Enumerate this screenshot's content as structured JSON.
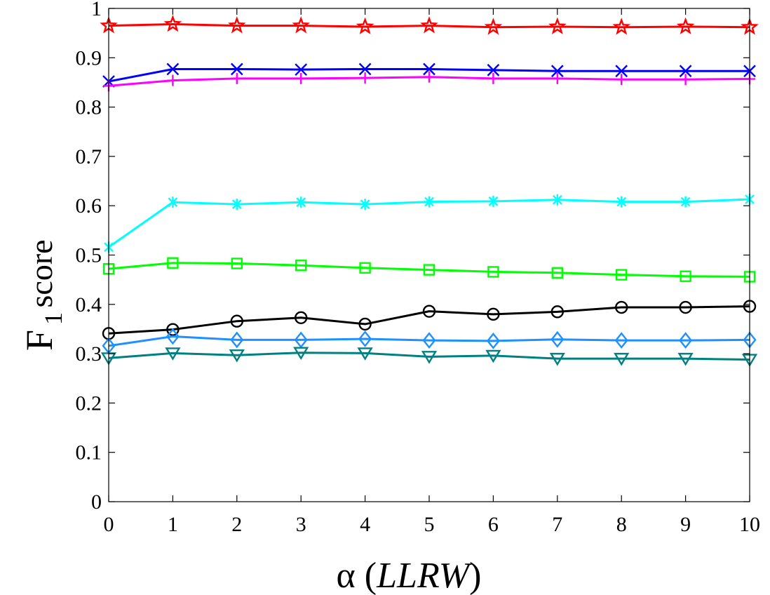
{
  "chart_data": {
    "type": "line",
    "title": "",
    "xlabel": {
      "greek": "α",
      "open": " (",
      "italic": "LLRW",
      "close": ")"
    },
    "ylabel": {
      "main": "F",
      "subscript": "1",
      "suffix": " score"
    },
    "x": [
      0,
      1,
      2,
      3,
      4,
      5,
      6,
      7,
      8,
      9,
      10
    ],
    "xlim": [
      0,
      10
    ],
    "ylim": [
      0,
      1
    ],
    "xticks": [
      "0",
      "1",
      "2",
      "3",
      "4",
      "5",
      "6",
      "7",
      "8",
      "9",
      "10"
    ],
    "yticks": [
      "0",
      "0.1",
      "0.2",
      "0.3",
      "0.4",
      "0.5",
      "0.6",
      "0.7",
      "0.8",
      "0.9",
      "1"
    ],
    "grid": false,
    "legend": "none",
    "series": [
      {
        "name": "red-star",
        "color": "#ff0000",
        "marker": "star",
        "values": [
          0.965,
          0.968,
          0.965,
          0.965,
          0.963,
          0.965,
          0.962,
          0.963,
          0.962,
          0.963,
          0.962
        ]
      },
      {
        "name": "blue-x",
        "color": "#0000ff",
        "marker": "x",
        "values": [
          0.852,
          0.877,
          0.877,
          0.876,
          0.877,
          0.877,
          0.875,
          0.873,
          0.873,
          0.873,
          0.873
        ]
      },
      {
        "name": "magenta-plus",
        "color": "#ff00ff",
        "marker": "plus",
        "values": [
          0.843,
          0.854,
          0.858,
          0.858,
          0.859,
          0.861,
          0.858,
          0.858,
          0.856,
          0.856,
          0.857
        ]
      },
      {
        "name": "cyan-asterisk",
        "color": "#00ffff",
        "marker": "asterisk",
        "values": [
          0.516,
          0.607,
          0.603,
          0.607,
          0.603,
          0.608,
          0.609,
          0.612,
          0.608,
          0.608,
          0.613
        ]
      },
      {
        "name": "green-square",
        "color": "#00ff00",
        "marker": "square",
        "values": [
          0.472,
          0.484,
          0.483,
          0.479,
          0.474,
          0.47,
          0.466,
          0.464,
          0.46,
          0.457,
          0.456
        ]
      },
      {
        "name": "black-circle",
        "color": "#000000",
        "marker": "circle",
        "values": [
          0.341,
          0.349,
          0.366,
          0.373,
          0.36,
          0.386,
          0.38,
          0.385,
          0.394,
          0.394,
          0.396
        ]
      },
      {
        "name": "lightblue-diamond",
        "color": "#1e90ff",
        "marker": "diamond",
        "values": [
          0.316,
          0.335,
          0.328,
          0.328,
          0.33,
          0.327,
          0.326,
          0.329,
          0.327,
          0.327,
          0.328
        ]
      },
      {
        "name": "teal-triangle",
        "color": "#008080",
        "marker": "triangle-down",
        "values": [
          0.291,
          0.301,
          0.297,
          0.302,
          0.301,
          0.294,
          0.296,
          0.29,
          0.29,
          0.29,
          0.288
        ]
      }
    ]
  }
}
